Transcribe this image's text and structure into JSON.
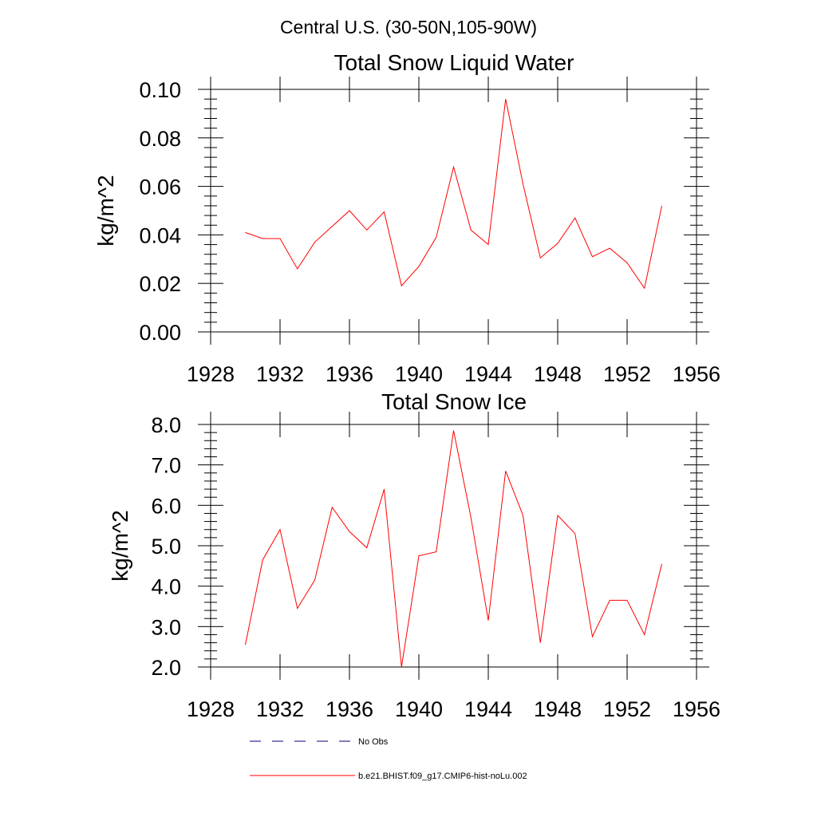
{
  "title": "Central U.S. (30-50N,105-90W)",
  "colors": {
    "model": "#ff0000",
    "obs": "#000080",
    "axis": "#000000"
  },
  "legend": {
    "obs_label": "No Obs",
    "model_label": "b.e21.BHIST.f09_g17.CMIP6-hist-noLu.002"
  },
  "chart_data": [
    {
      "type": "line",
      "title": "Total Snow Liquid Water",
      "xlabel": "",
      "ylabel": "kg/m^2",
      "xlim": [
        1928,
        1956
      ],
      "ylim": [
        0.0,
        0.1
      ],
      "x_ticks": [
        1928,
        1932,
        1936,
        1940,
        1944,
        1948,
        1952,
        1956
      ],
      "y_ticks": [
        "0.00",
        "0.02",
        "0.04",
        "0.06",
        "0.08",
        "0.10"
      ],
      "y_tick_values": [
        0.0,
        0.02,
        0.04,
        0.06,
        0.08,
        0.1
      ],
      "series": [
        {
          "name": "b.e21.BHIST.f09_g17.CMIP6-hist-noLu.002",
          "x": [
            1930,
            1931,
            1932,
            1933,
            1934,
            1935,
            1936,
            1937,
            1938,
            1939,
            1940,
            1941,
            1942,
            1943,
            1944,
            1945,
            1946,
            1947,
            1948,
            1949,
            1950,
            1951,
            1952,
            1953,
            1954
          ],
          "y": [
            0.041,
            0.0385,
            0.0385,
            0.026,
            0.037,
            0.0435,
            0.05,
            0.042,
            0.0495,
            0.019,
            0.027,
            0.039,
            0.068,
            0.042,
            0.036,
            0.096,
            0.061,
            0.0305,
            0.0365,
            0.047,
            0.031,
            0.0345,
            0.0285,
            0.018,
            0.052
          ]
        }
      ]
    },
    {
      "type": "line",
      "title": "Total Snow Ice",
      "xlabel": "",
      "ylabel": "kg/m^2",
      "xlim": [
        1928,
        1956
      ],
      "ylim": [
        2.0,
        8.0
      ],
      "x_ticks": [
        1928,
        1932,
        1936,
        1940,
        1944,
        1948,
        1952,
        1956
      ],
      "y_ticks": [
        "2.0",
        "3.0",
        "4.0",
        "5.0",
        "6.0",
        "7.0",
        "8.0"
      ],
      "y_tick_values": [
        2.0,
        3.0,
        4.0,
        5.0,
        6.0,
        7.0,
        8.0
      ],
      "series": [
        {
          "name": "b.e21.BHIST.f09_g17.CMIP6-hist-noLu.002",
          "x": [
            1930,
            1931,
            1932,
            1933,
            1934,
            1935,
            1936,
            1937,
            1938,
            1939,
            1940,
            1941,
            1942,
            1943,
            1944,
            1945,
            1946,
            1947,
            1948,
            1949,
            1950,
            1951,
            1952,
            1953,
            1954
          ],
          "y": [
            2.55,
            4.65,
            5.4,
            3.45,
            4.15,
            5.95,
            5.35,
            4.95,
            6.4,
            2.0,
            4.75,
            4.85,
            7.85,
            5.7,
            3.15,
            6.85,
            5.75,
            2.6,
            5.75,
            5.3,
            2.75,
            3.65,
            3.65,
            2.8,
            4.55
          ]
        }
      ]
    }
  ]
}
